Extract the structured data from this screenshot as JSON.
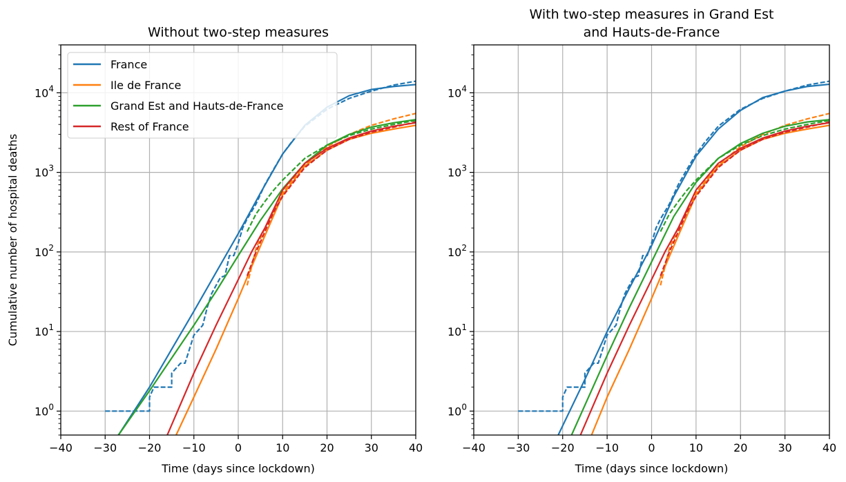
{
  "chart_data": [
    {
      "type": "line",
      "title": [
        "Without two-step measures"
      ],
      "xlabel": "Time (days since lockdown)",
      "ylabel": "Cumulative number of hospital deaths",
      "xlim": [
        -40,
        40
      ],
      "ylim": [
        0.5,
        40000
      ],
      "yscale": "log",
      "xticks": [
        -40,
        -30,
        -20,
        -10,
        0,
        10,
        20,
        30,
        40
      ],
      "xtick_labels": [
        "−40",
        "−30",
        "−20",
        "−10",
        "0",
        "10",
        "20",
        "30",
        "40"
      ],
      "yticks": [
        1,
        10,
        100,
        1000,
        10000
      ],
      "ytick_labels": [
        {
          "base": "10",
          "exp": "0"
        },
        {
          "base": "10",
          "exp": "1"
        },
        {
          "base": "10",
          "exp": "2"
        },
        {
          "base": "10",
          "exp": "3"
        },
        {
          "base": "10",
          "exp": "4"
        }
      ],
      "grid": true,
      "legend": {
        "location": "upper-left",
        "entries": [
          {
            "label": "France",
            "color": "#1f77b4"
          },
          {
            "label": "Ile de France",
            "color": "#ff7f0e"
          },
          {
            "label": "Grand Est and Hauts-de-France",
            "color": "#2ca02c"
          },
          {
            "label": "Rest of France",
            "color": "#d62728"
          }
        ]
      },
      "series": [
        {
          "name": "France",
          "style": "solid",
          "color": "#1f77b4",
          "x": [
            -27,
            -20,
            -10,
            0,
            5,
            10,
            15,
            20,
            25,
            30,
            35,
            40
          ],
          "y": [
            0.5,
            2,
            18,
            170,
            550,
            1700,
            3900,
            6600,
            9200,
            11000,
            12000,
            12700
          ]
        },
        {
          "name": "France",
          "style": "dashed",
          "color": "#1f77b4",
          "x": [
            -30,
            -20,
            -20,
            -19,
            -15,
            -15,
            -13,
            -12,
            -10,
            -8,
            -7,
            -6,
            -4,
            -3,
            -2,
            -1,
            0,
            1,
            2,
            4,
            6,
            8,
            10,
            12,
            15,
            20,
            25,
            30,
            35,
            40
          ],
          "y": [
            1,
            1,
            1.5,
            2,
            2,
            3,
            4,
            4,
            9,
            12,
            20,
            30,
            48,
            50,
            90,
            90,
            130,
            200,
            260,
            400,
            700,
            1100,
            1700,
            2400,
            3800,
            6200,
            8500,
            10500,
            12500,
            14000
          ]
        },
        {
          "name": "Ile de France",
          "style": "solid",
          "color": "#ff7f0e",
          "x": [
            -14,
            -10,
            -5,
            0,
            3,
            6,
            10,
            15,
            20,
            25,
            30,
            35,
            40
          ],
          "y": [
            0.5,
            1.5,
            6,
            26,
            65,
            160,
            520,
            1200,
            1900,
            2600,
            3100,
            3500,
            3900
          ]
        },
        {
          "name": "Ile de France",
          "style": "dashed",
          "color": "#ff7f0e",
          "x": [
            2,
            3,
            4,
            6,
            8,
            10,
            15,
            20,
            25,
            30,
            35,
            40
          ],
          "y": [
            38,
            65,
            110,
            200,
            330,
            550,
            1250,
            2100,
            3000,
            3900,
            4700,
            5500
          ]
        },
        {
          "name": "Grand Est and Hauts-de-France",
          "style": "solid",
          "color": "#2ca02c",
          "x": [
            -27,
            -20,
            -10,
            -5,
            0,
            5,
            10,
            15,
            20,
            25,
            30,
            35,
            40
          ],
          "y": [
            0.5,
            1.8,
            12,
            32,
            90,
            250,
            620,
            1300,
            2200,
            3000,
            3700,
            4200,
            4600
          ]
        },
        {
          "name": "Grand Est and Hauts-de-France",
          "style": "dashed",
          "color": "#2ca02c",
          "x": [
            2,
            4,
            6,
            8,
            10,
            15,
            20,
            25,
            30,
            35,
            40
          ],
          "y": [
            180,
            300,
            430,
            600,
            800,
            1500,
            2200,
            2900,
            3500,
            4000,
            4500
          ]
        },
        {
          "name": "Rest of France",
          "style": "solid",
          "color": "#d62728",
          "x": [
            -16,
            -10,
            -5,
            0,
            3,
            6,
            10,
            15,
            20,
            25,
            30,
            35,
            40
          ],
          "y": [
            0.5,
            3,
            12,
            45,
            100,
            200,
            600,
            1300,
            2000,
            2700,
            3300,
            3800,
            4200
          ]
        },
        {
          "name": "Rest of France",
          "style": "dashed",
          "color": "#d62728",
          "x": [
            2,
            4,
            6,
            8,
            10,
            15,
            20,
            25,
            30,
            35,
            40
          ],
          "y": [
            50,
            100,
            180,
            320,
            500,
            1150,
            1900,
            2600,
            3200,
            3700,
            4300
          ]
        }
      ]
    },
    {
      "type": "line",
      "title": [
        "With two-step measures in Grand Est",
        "and Hauts-de-France"
      ],
      "xlabel": "Time (days since lockdown)",
      "ylabel": "",
      "xlim": [
        -40,
        40
      ],
      "ylim": [
        0.5,
        40000
      ],
      "yscale": "log",
      "xticks": [
        -40,
        -30,
        -20,
        -10,
        0,
        10,
        20,
        30,
        40
      ],
      "xtick_labels": [
        "−40",
        "−30",
        "−20",
        "−10",
        "0",
        "10",
        "20",
        "30",
        "40"
      ],
      "yticks": [
        1,
        10,
        100,
        1000,
        10000
      ],
      "ytick_labels": [
        {
          "base": "10",
          "exp": "0"
        },
        {
          "base": "10",
          "exp": "1"
        },
        {
          "base": "10",
          "exp": "2"
        },
        {
          "base": "10",
          "exp": "3"
        },
        {
          "base": "10",
          "exp": "4"
        }
      ],
      "grid": true,
      "series": [
        {
          "name": "France",
          "style": "solid",
          "color": "#1f77b4",
          "x": [
            -21,
            -15,
            -10,
            -5,
            0,
            5,
            10,
            15,
            20,
            25,
            30,
            35,
            40
          ],
          "y": [
            0.5,
            2.5,
            10,
            35,
            120,
            500,
            1600,
            3500,
            6000,
            8700,
            10500,
            12000,
            12800
          ]
        },
        {
          "name": "France",
          "style": "dashed",
          "color": "#1f77b4",
          "x": [
            -30,
            -20,
            -20,
            -19,
            -15,
            -15,
            -13,
            -12,
            -10,
            -8,
            -7,
            -6,
            -4,
            -3,
            -2,
            -1,
            0,
            1,
            2,
            4,
            6,
            8,
            10,
            12,
            15,
            20,
            25,
            30,
            35,
            40
          ],
          "y": [
            1,
            1,
            1.5,
            2,
            2,
            3,
            4,
            4,
            9,
            12,
            20,
            30,
            48,
            50,
            90,
            90,
            130,
            200,
            260,
            400,
            700,
            1100,
            1700,
            2400,
            3800,
            6200,
            8500,
            10500,
            12500,
            14000
          ]
        },
        {
          "name": "Ile de France",
          "style": "solid",
          "color": "#ff7f0e",
          "x": [
            -13.5,
            -10,
            -5,
            0,
            3,
            6,
            10,
            15,
            20,
            25,
            30,
            35,
            40
          ],
          "y": [
            0.5,
            1.5,
            6,
            26,
            65,
            160,
            520,
            1200,
            1900,
            2600,
            3100,
            3500,
            3900
          ]
        },
        {
          "name": "Ile de France",
          "style": "dashed",
          "color": "#ff7f0e",
          "x": [
            2,
            3,
            4,
            6,
            8,
            10,
            15,
            20,
            25,
            30,
            35,
            40
          ],
          "y": [
            38,
            65,
            110,
            200,
            330,
            550,
            1250,
            2100,
            3000,
            3900,
            4700,
            5500
          ]
        },
        {
          "name": "Grand Est and Hauts-de-France",
          "style": "solid",
          "color": "#2ca02c",
          "x": [
            -18,
            -10,
            -5,
            0,
            5,
            10,
            15,
            20,
            25,
            30,
            35,
            40
          ],
          "y": [
            0.5,
            5,
            20,
            75,
            280,
            750,
            1500,
            2300,
            3100,
            3800,
            4300,
            4600
          ]
        },
        {
          "name": "Grand Est and Hauts-de-France",
          "style": "dashed",
          "color": "#2ca02c",
          "x": [
            2,
            4,
            6,
            8,
            10,
            15,
            20,
            25,
            30,
            35,
            40
          ],
          "y": [
            180,
            300,
            430,
            600,
            800,
            1500,
            2200,
            2900,
            3500,
            4000,
            4500
          ]
        },
        {
          "name": "Rest of France",
          "style": "solid",
          "color": "#d62728",
          "x": [
            -16,
            -10,
            -5,
            0,
            3,
            6,
            10,
            15,
            20,
            25,
            30,
            35,
            40
          ],
          "y": [
            0.5,
            3,
            12,
            45,
            100,
            200,
            600,
            1300,
            2000,
            2700,
            3300,
            3800,
            4200
          ]
        },
        {
          "name": "Rest of France",
          "style": "dashed",
          "color": "#d62728",
          "x": [
            2,
            4,
            6,
            8,
            10,
            15,
            20,
            25,
            30,
            35,
            40
          ],
          "y": [
            50,
            100,
            180,
            320,
            500,
            1150,
            1900,
            2600,
            3200,
            3700,
            4300
          ]
        }
      ]
    }
  ]
}
